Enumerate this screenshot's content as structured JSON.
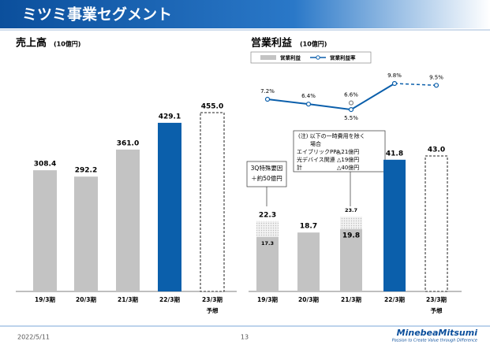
{
  "header": {
    "title": "ミツミ事業セグメント"
  },
  "chart_data": [
    {
      "type": "bar",
      "title": "売上高",
      "unit": "(10億円)",
      "categories": [
        "19/3期",
        "20/3期",
        "21/3期",
        "22/3期",
        "23/3期"
      ],
      "values": [
        308.4,
        292.2,
        361.0,
        429.1,
        455.0
      ],
      "value_labels": [
        "308.4",
        "292.2",
        "361.0",
        "429.1",
        "455.0"
      ],
      "colors": [
        "#c3c3c3",
        "#c3c3c3",
        "#c3c3c3",
        "#0b5fab",
        "#ffffff"
      ],
      "forecast": [
        false,
        false,
        false,
        false,
        true
      ],
      "forecast_label": "予想"
    },
    {
      "type": "bar_line",
      "title": "営業利益",
      "unit": "(10億円)",
      "categories": [
        "19/3期",
        "20/3期",
        "21/3期",
        "22/3期",
        "23/3期"
      ],
      "forecast": [
        false,
        false,
        false,
        false,
        true
      ],
      "forecast_label": "予想",
      "series": [
        {
          "name": "営業利益",
          "type": "bar",
          "colors": [
            "#c3c3c3",
            "#c3c3c3",
            "#c3c3c3",
            "#0b5fab",
            "#ffffff"
          ],
          "values": [
            22.3,
            18.7,
            19.8,
            41.8,
            43.0
          ],
          "value_labels": [
            "22.3",
            "18.7",
            "19.8",
            "41.8",
            "43.0"
          ],
          "adjusted_values": [
            17.3,
            null,
            23.7,
            null,
            null
          ],
          "adjusted_labels": [
            "17.3",
            null,
            "23.7",
            null,
            null
          ]
        },
        {
          "name": "営業利益率",
          "type": "line",
          "color": "#0b5fab",
          "values": [
            7.2,
            6.4,
            5.5,
            9.8,
            9.5
          ],
          "value_labels": [
            "7.2%",
            "6.4%",
            "5.5%",
            "9.8%",
            "9.5%"
          ],
          "adjusted_values": [
            null,
            null,
            6.6,
            null,
            null
          ],
          "adjusted_labels": [
            null,
            null,
            "6.6%",
            null,
            null
          ]
        }
      ],
      "annotations": [
        {
          "lines": [
            "3Q特殊要因",
            "＋約50億円"
          ]
        },
        {
          "lines": [
            "(注) 以下の一時費用を除く",
            "場合"
          ],
          "rows": [
            [
              "エイブリックPPA",
              "△21億円"
            ],
            [
              "光デバイス関連",
              "△19億円"
            ],
            [
              "計",
              "△40億円"
            ]
          ]
        }
      ]
    }
  ],
  "footer": {
    "date": "2022/5/11",
    "page": "13",
    "logo": "MinebeaMitsumi",
    "tagline": "Passion to Create Value through Difference"
  }
}
